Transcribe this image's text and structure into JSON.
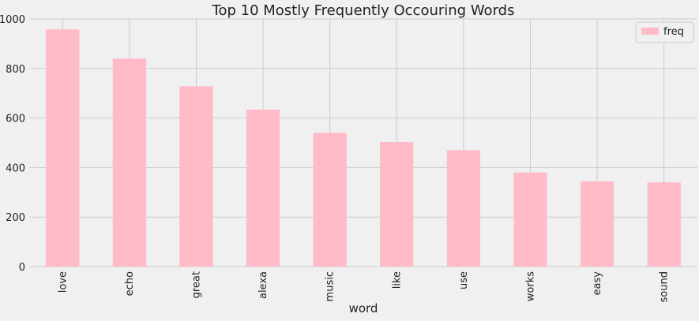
{
  "chart_data": {
    "type": "bar",
    "title": "Top 10 Mostly Frequently Occouring Words",
    "xlabel": "word",
    "ylabel": "",
    "categories": [
      "love",
      "echo",
      "great",
      "alexa",
      "music",
      "like",
      "use",
      "works",
      "easy",
      "sound"
    ],
    "series": [
      {
        "name": "freq",
        "values": [
          958,
          840,
          728,
          634,
          540,
          503,
          470,
          380,
          344,
          340
        ],
        "color": "#ffbbc8"
      }
    ],
    "ylim": [
      0,
      1000
    ],
    "yticks": [
      0,
      200,
      400,
      600,
      800,
      1000
    ],
    "grid": true,
    "legend": "top-right"
  },
  "colors": {
    "background": "#f0f0f0",
    "grid": "#cbcbcb",
    "bar": "#ffbbc8"
  }
}
